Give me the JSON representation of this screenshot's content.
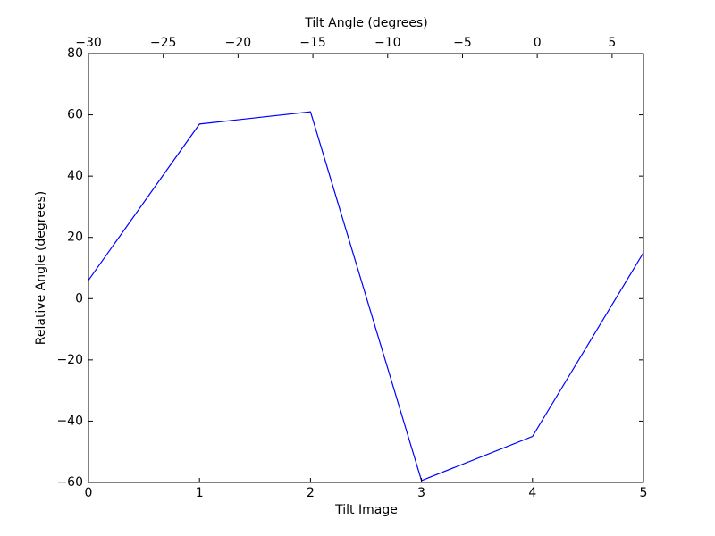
{
  "chart_data": {
    "type": "line",
    "xlabel": "Tilt Image",
    "ylabel": "Relative Angle (degrees)",
    "x2label": "Tilt Angle (degrees)",
    "x": [
      0,
      1,
      2,
      3,
      4,
      5
    ],
    "values": [
      6,
      57,
      61,
      -59.4,
      -45,
      15
    ],
    "color": "#0000ff",
    "xlim": [
      0,
      5
    ],
    "xticks": [
      0,
      1,
      2,
      3,
      4,
      5
    ],
    "ylim": [
      -60,
      80
    ],
    "yticks": [
      {
        "value": -60,
        "label": "−60"
      },
      {
        "value": -40,
        "label": "−40"
      },
      {
        "value": -20,
        "label": "−20"
      },
      0,
      20,
      40,
      60,
      80
    ],
    "x2lim": [
      -30,
      7.1
    ],
    "x2ticks": [
      {
        "value": -30,
        "label": "−30"
      },
      {
        "value": -25,
        "label": "−25"
      },
      {
        "value": -20,
        "label": "−20"
      },
      {
        "value": -15,
        "label": "−15"
      },
      {
        "value": -10,
        "label": "−10"
      },
      {
        "value": -5,
        "label": "−5"
      },
      0,
      5
    ]
  }
}
